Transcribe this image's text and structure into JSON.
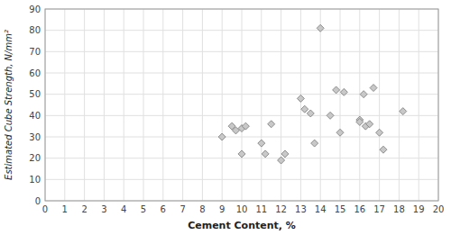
{
  "chart_data": {
    "type": "scatter",
    "x": [
      9,
      9.5,
      9.7,
      10,
      10,
      10.2,
      11,
      11.2,
      11.5,
      12,
      12.2,
      13,
      13.2,
      13.5,
      13.7,
      14,
      14.5,
      14.8,
      15,
      15.2,
      16,
      16,
      16.2,
      16.3,
      16.5,
      16.7,
      17,
      17.2,
      18.2
    ],
    "y": [
      30,
      35,
      33,
      22,
      34,
      35,
      27,
      22,
      36,
      19,
      22,
      48,
      43,
      41,
      27,
      81,
      40,
      52,
      32,
      51,
      38,
      37,
      50,
      35,
      36,
      53,
      32,
      24,
      42
    ],
    "xlabel": "Cement Content, %",
    "ylabel": "Estimated Cube Strength, N/mm²",
    "xlim": [
      0,
      20
    ],
    "ylim": [
      0,
      90
    ],
    "xticks": [
      0,
      1,
      2,
      3,
      4,
      5,
      6,
      7,
      8,
      9,
      10,
      11,
      12,
      13,
      14,
      15,
      16,
      17,
      18,
      19,
      20
    ],
    "yticks": [
      0,
      10,
      20,
      30,
      40,
      50,
      60,
      70,
      80,
      90
    ],
    "color": "#c8c8c8",
    "marker": "diamond",
    "grid": true
  }
}
